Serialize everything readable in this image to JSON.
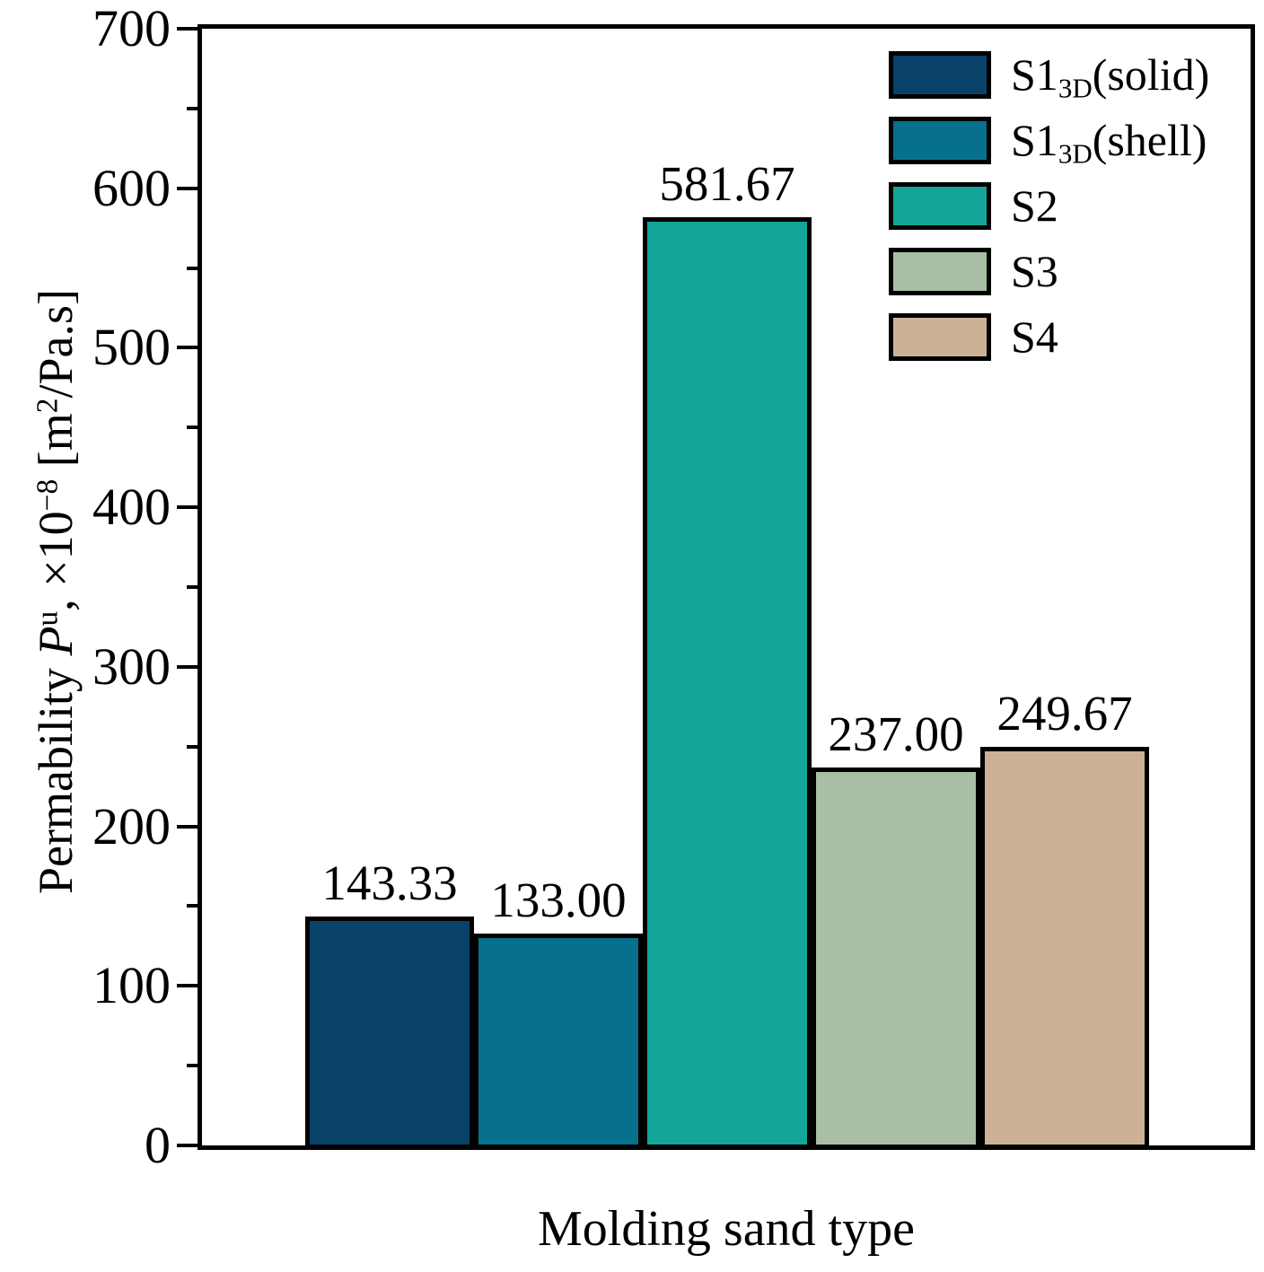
{
  "figure": {
    "xlabel": "Molding sand type",
    "ylabel": {
      "pre": "Permability ",
      "symbol": "P",
      "symbol_sup": "u",
      "mid": ", ×10",
      "exp": "−8",
      "unit_open": " [m",
      "unit_sup": "2",
      "unit_close": "/Pa.s]"
    }
  },
  "chart_data": {
    "type": "bar",
    "title": "",
    "xlabel": "Molding sand type",
    "ylabel": "Permability P^u, ×10^−8 [m^2/Pa.s]",
    "ylim": [
      0,
      700
    ],
    "ytick_major": 100,
    "ytick_minor": 50,
    "ytick_labels": [
      "0",
      "100",
      "200",
      "300",
      "400",
      "500",
      "600",
      "700"
    ],
    "grid": false,
    "legend_position": "top-right",
    "categories": [
      "S1_3D(solid)",
      "S1_3D(shell)",
      "S2",
      "S3",
      "S4"
    ],
    "values": [
      143.33,
      133.0,
      581.67,
      237.0,
      249.67
    ],
    "value_labels": [
      "143.33",
      "133.00",
      "581.67",
      "237.00",
      "249.67"
    ],
    "colors": [
      "#094269",
      "#07708c",
      "#15a49a",
      "#a9bea5",
      "#cbb296"
    ],
    "bar_edge_color": "#000000",
    "legend": [
      {
        "base": "S1",
        "sub": "3D",
        "suffix": "(solid)"
      },
      {
        "base": "S1",
        "sub": "3D",
        "suffix": "(shell)"
      },
      {
        "base": "S2",
        "sub": "",
        "suffix": ""
      },
      {
        "base": "S3",
        "sub": "",
        "suffix": ""
      },
      {
        "base": "S4",
        "sub": "",
        "suffix": ""
      }
    ]
  }
}
